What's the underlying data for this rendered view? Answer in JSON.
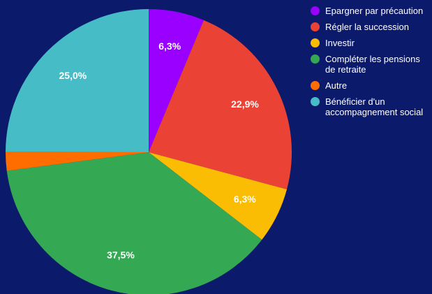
{
  "chart_data": {
    "type": "pie",
    "categories": [
      "Epargner par précaution",
      "Régler la succession",
      "Investir",
      "Compléter les pensions de retraite",
      "Autre",
      "Bénéficier d'un accompagnement social"
    ],
    "values": [
      6.3,
      22.9,
      6.3,
      37.5,
      2.1,
      25.0
    ],
    "value_labels": [
      "6,3%",
      "22,9%",
      "6,3%",
      "37,5%",
      null,
      "25,0%"
    ],
    "colors": [
      "#9900ff",
      "#ea4335",
      "#fbbc04",
      "#34a853",
      "#ff6d01",
      "#46bdc6"
    ],
    "legend": "right"
  }
}
